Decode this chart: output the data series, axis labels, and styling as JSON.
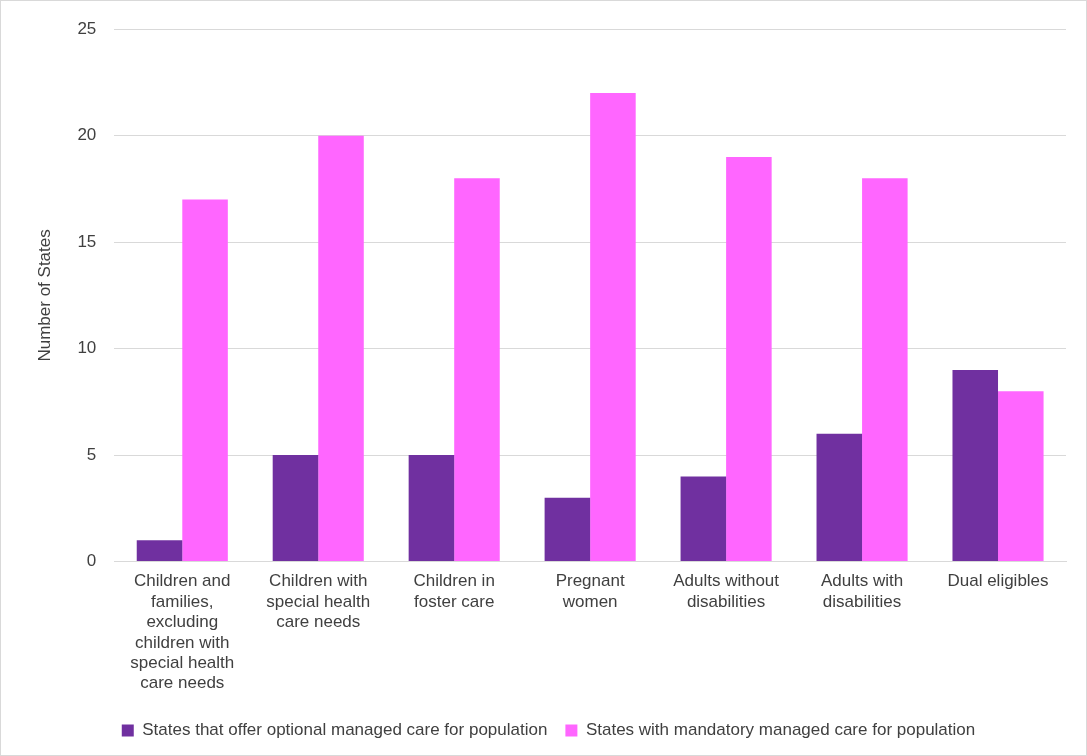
{
  "chart_data": {
    "type": "bar",
    "ylabel": "Number of States",
    "categories": [
      "Children and families, excluding children with special health care needs",
      "Children with special health care needs",
      "Children in foster care",
      "Pregnant women",
      "Adults without disabilities",
      "Adults with disabilities",
      "Dual eligibles"
    ],
    "series": [
      {
        "name": "States that offer optional managed care for population",
        "color": "#7030a0",
        "values": [
          1,
          5,
          5,
          3,
          4,
          6,
          9
        ]
      },
      {
        "name": "States with mandatory managed care for population",
        "color": "#ff66ff",
        "values": [
          17,
          20,
          18,
          22,
          19,
          18,
          8
        ]
      }
    ],
    "ylim": [
      0,
      25
    ],
    "yticks": [
      0,
      5,
      10,
      15,
      20,
      25
    ],
    "grid": "y",
    "legend": "bottom"
  }
}
